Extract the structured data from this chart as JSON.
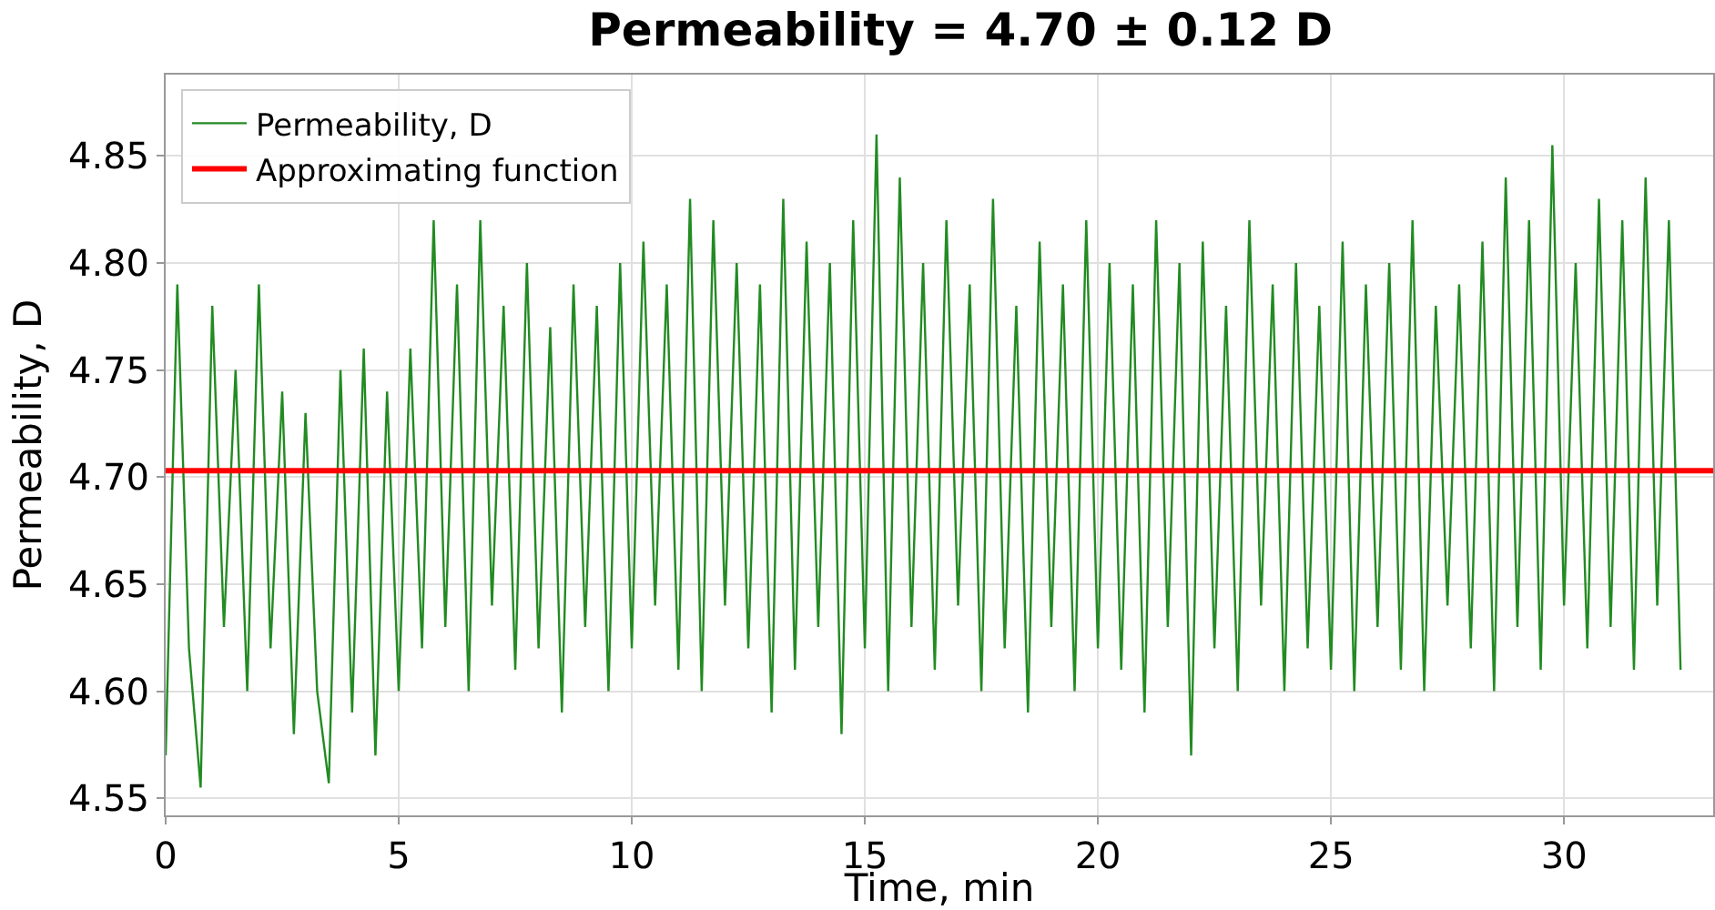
{
  "chart_data": {
    "type": "line",
    "title": "Permeability = 4.70 ± 0.12 D",
    "xlabel": "Time, min",
    "ylabel": "Permeability, D",
    "xlim": [
      0,
      33.2
    ],
    "xticks": [
      0,
      5,
      10,
      15,
      20,
      25,
      30
    ],
    "ylim": [
      4.542,
      4.888
    ],
    "yticks": [
      4.55,
      {
        "value": 4.6,
        "label": "4.60"
      },
      4.65,
      {
        "value": 4.7,
        "label": "4.70"
      },
      4.75,
      {
        "value": 4.8,
        "label": "4.80"
      },
      4.85
    ],
    "grid": true,
    "legend": "top left",
    "line_style": "solid",
    "marker": "none",
    "series": [
      {
        "name": "Permeability, D",
        "color": "#228b22",
        "x": [
          0,
          0.25,
          0.5,
          0.75,
          1,
          1.25,
          1.5,
          1.75,
          2,
          2.25,
          2.5,
          2.75,
          3,
          3.25,
          3.5,
          3.75,
          4,
          4.25,
          4.5,
          4.75,
          5,
          5.25,
          5.5,
          5.75,
          6,
          6.25,
          6.5,
          6.75,
          7,
          7.25,
          7.5,
          7.75,
          8,
          8.25,
          8.5,
          8.75,
          9,
          9.25,
          9.5,
          9.75,
          10,
          10.25,
          10.5,
          10.75,
          11,
          11.25,
          11.5,
          11.75,
          12,
          12.25,
          12.5,
          12.75,
          13,
          13.25,
          13.5,
          13.75,
          14,
          14.25,
          14.5,
          14.75,
          15,
          15.25,
          15.5,
          15.75,
          16,
          16.25,
          16.5,
          16.75,
          17,
          17.25,
          17.5,
          17.75,
          18,
          18.25,
          18.5,
          18.75,
          19,
          19.25,
          19.5,
          19.75,
          20,
          20.25,
          20.5,
          20.75,
          21,
          21.25,
          21.5,
          21.75,
          22,
          22.25,
          22.5,
          22.75,
          23,
          23.25,
          23.5,
          23.75,
          24,
          24.25,
          24.5,
          24.75,
          25,
          25.25,
          25.5,
          25.75,
          26,
          26.25,
          26.5,
          26.75,
          27,
          27.25,
          27.5,
          27.75,
          28,
          28.25,
          28.5,
          28.75,
          29,
          29.25,
          29.5,
          29.75,
          30,
          30.25,
          30.5,
          30.75,
          31,
          31.25,
          31.5,
          31.75,
          32,
          32.25,
          32.5
        ],
        "values": [
          4.57,
          4.79,
          4.62,
          4.555,
          4.78,
          4.63,
          4.75,
          4.6,
          4.79,
          4.62,
          4.74,
          4.58,
          4.73,
          4.6,
          4.557,
          4.75,
          4.59,
          4.76,
          4.57,
          4.74,
          4.6,
          4.76,
          4.62,
          4.82,
          4.63,
          4.79,
          4.6,
          4.82,
          4.64,
          4.78,
          4.61,
          4.8,
          4.62,
          4.77,
          4.59,
          4.79,
          4.63,
          4.78,
          4.6,
          4.8,
          4.62,
          4.81,
          4.64,
          4.79,
          4.61,
          4.83,
          4.6,
          4.82,
          4.64,
          4.8,
          4.62,
          4.79,
          4.59,
          4.83,
          4.61,
          4.81,
          4.63,
          4.8,
          4.58,
          4.82,
          4.62,
          4.86,
          4.6,
          4.84,
          4.63,
          4.8,
          4.61,
          4.82,
          4.64,
          4.79,
          4.6,
          4.83,
          4.62,
          4.78,
          4.59,
          4.81,
          4.63,
          4.79,
          4.6,
          4.82,
          4.62,
          4.8,
          4.61,
          4.79,
          4.59,
          4.82,
          4.63,
          4.8,
          4.57,
          4.81,
          4.62,
          4.78,
          4.6,
          4.82,
          4.64,
          4.79,
          4.6,
          4.8,
          4.62,
          4.78,
          4.61,
          4.81,
          4.6,
          4.79,
          4.63,
          4.8,
          4.61,
          4.82,
          4.6,
          4.78,
          4.64,
          4.79,
          4.62,
          4.81,
          4.6,
          4.84,
          4.63,
          4.82,
          4.61,
          4.855,
          4.64,
          4.8,
          4.62,
          4.83,
          4.63,
          4.82,
          4.61,
          4.84,
          4.64,
          4.82,
          4.61
        ]
      },
      {
        "name": "Approximating function",
        "color": "#ff0000",
        "x": [
          0,
          33.2
        ],
        "values": [
          4.703,
          4.703
        ]
      }
    ]
  }
}
